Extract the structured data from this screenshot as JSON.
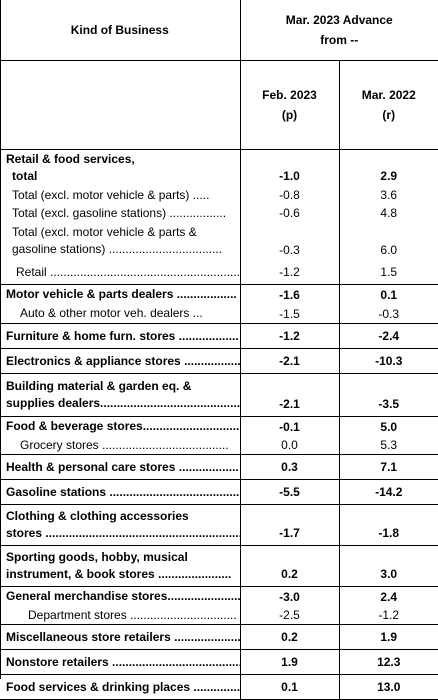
{
  "header": {
    "kind_of_business": "Kind of Business",
    "advance_line1": "Mar. 2023 Advance",
    "advance_line2": "from --",
    "col1_line1": "Feb. 2023",
    "col1_line2": "(p)",
    "col2_line1": "Mar. 2022",
    "col2_line2": "(r)"
  },
  "rows": [
    {
      "label": "Retail & food services,",
      "label2": "total ",
      "feb": "-1.0",
      "mar": "2.9"
    },
    {
      "label": "Total (excl. motor vehicle & parts) .....",
      "feb": "-0.8",
      "mar": "3.6"
    },
    {
      "label": "Total (excl. gasoline stations) .................",
      "feb": "-0.6",
      "mar": "4.8"
    },
    {
      "label": "Total (excl. motor vehicle & parts &",
      "label2": "gasoline stations) ..................................",
      "feb": "-0.3",
      "mar": "6.0"
    },
    {
      "label": "Retail .........................................................",
      "feb": "-1.2",
      "mar": "1.5"
    },
    {
      "label": "Motor vehicle & parts dealers ..................",
      "feb": "-1.6",
      "mar": "0.1"
    },
    {
      "label": "Auto & other motor veh. dealers ...",
      "feb": "-1.5",
      "mar": "-0.3"
    },
    {
      "label": "Furniture & home furn. stores ..................",
      "feb": "-1.2",
      "mar": "-2.4"
    },
    {
      "label": "Electronics & appliance stores ..................",
      "feb": "-2.1",
      "mar": "-10.3"
    },
    {
      "label": "Building material & garden eq. &",
      "label2": "supplies dealers..............................................",
      "feb": "-2.1",
      "mar": "-3.5"
    },
    {
      "label": "Food & beverage stores..............................",
      "feb": "-0.1",
      "mar": "5.0"
    },
    {
      "label": "Grocery stores ......................................",
      "feb": "0.0",
      "mar": "5.3"
    },
    {
      "label": "Health & personal care stores ..................",
      "feb": "0.3",
      "mar": "7.1"
    },
    {
      "label": "Gasoline stations ..............................................",
      "feb": "-5.5",
      "mar": "-14.2"
    },
    {
      "label": "Clothing & clothing accessories",
      "label2": "stores ...............................................................",
      "feb": "-1.7",
      "mar": "-1.8"
    },
    {
      "label": "Sporting goods, hobby, musical",
      "label2": "instrument, & book stores ......................",
      "feb": "0.2",
      "mar": "3.0"
    },
    {
      "label": "General merchandise stores.........................",
      "feb": "-3.0",
      "mar": "2.4"
    },
    {
      "label": "Department stores ................................",
      "feb": "-2.5",
      "mar": "-1.2"
    },
    {
      "label": "Miscellaneous store retailers ....................",
      "feb": "0.2",
      "mar": "1.9"
    },
    {
      "label": "Nonstore retailers ..............................................",
      "feb": "1.9",
      "mar": "12.3"
    },
    {
      "label": "Food services & drinking places ...............",
      "feb": "0.1",
      "mar": "13.0"
    }
  ]
}
